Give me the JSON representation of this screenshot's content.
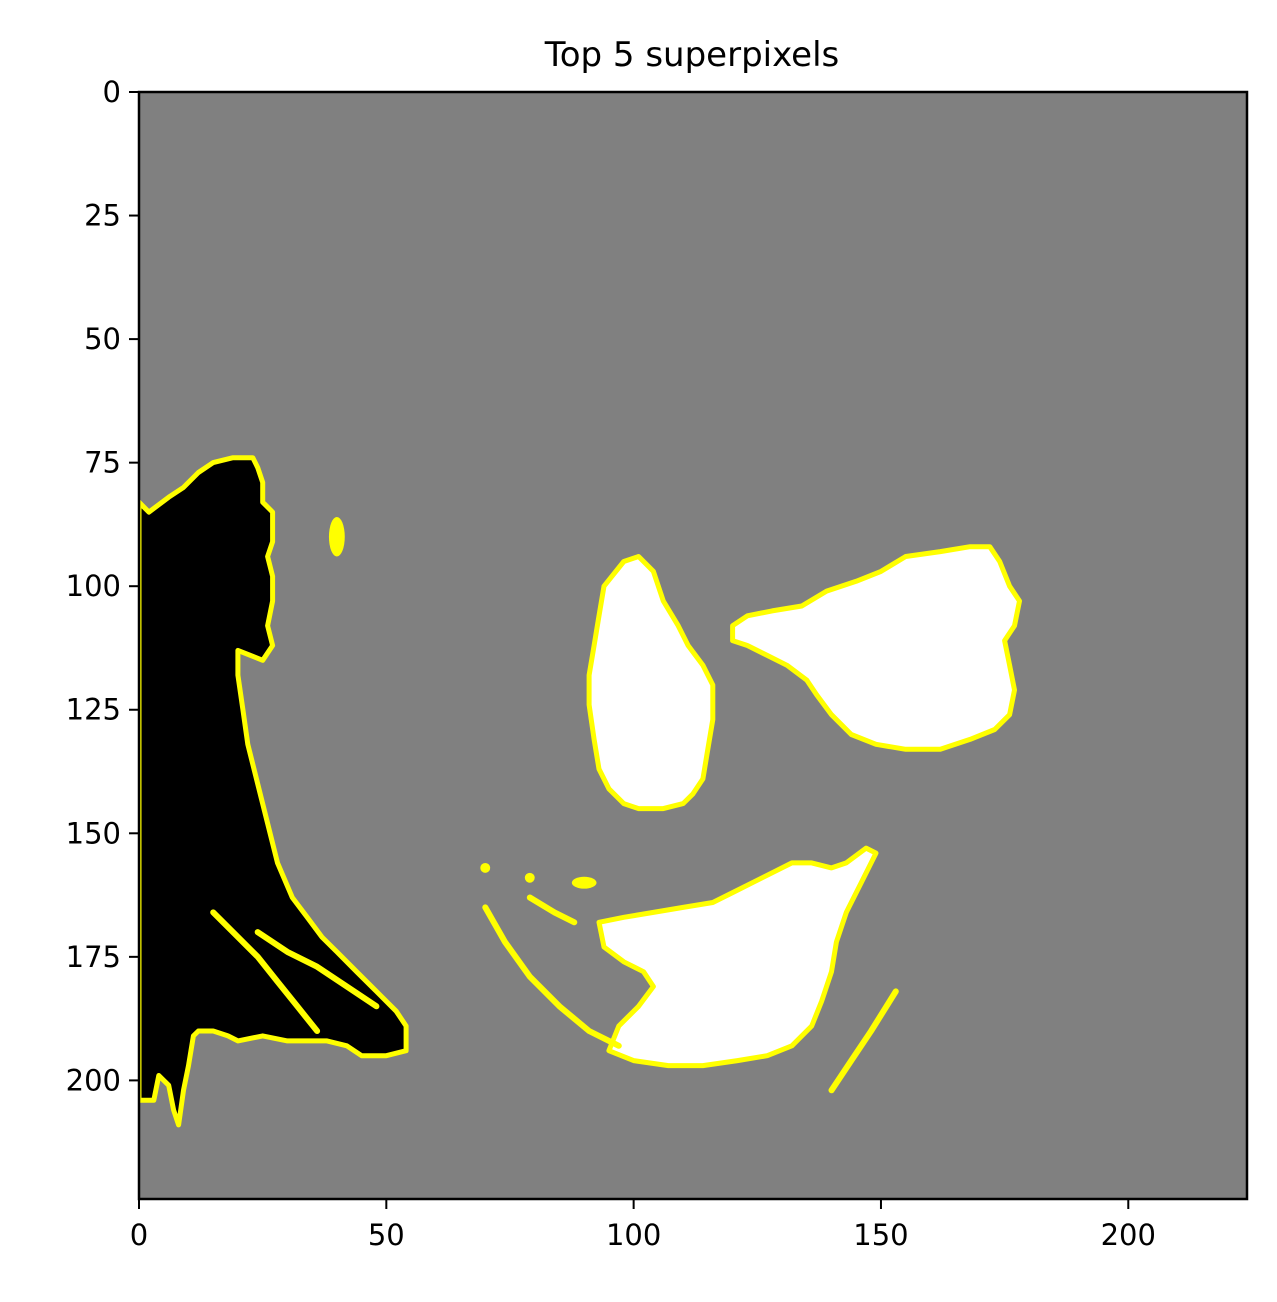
{
  "chart_data": {
    "type": "image",
    "title": "Top 5 superpixels",
    "xlabel": "",
    "ylabel": "",
    "xlim": [
      0,
      224
    ],
    "ylim": [
      224,
      0
    ],
    "xticks": [
      0,
      50,
      100,
      150,
      200
    ],
    "yticks": [
      0,
      25,
      50,
      75,
      100,
      125,
      150,
      175,
      200
    ],
    "grid": false,
    "background_color": "#808080",
    "boundary_color": "#ffff00",
    "regions": [
      {
        "name": "left-black-region",
        "fill": "#000000",
        "outline": [
          [
            0,
            83
          ],
          [
            2,
            85
          ],
          [
            6,
            82
          ],
          [
            9,
            80
          ],
          [
            12,
            77
          ],
          [
            15,
            75
          ],
          [
            19,
            74
          ],
          [
            23,
            74
          ],
          [
            24,
            76
          ],
          [
            25,
            79
          ],
          [
            25,
            83
          ],
          [
            27,
            85
          ],
          [
            27,
            91
          ],
          [
            26,
            94
          ],
          [
            27,
            98
          ],
          [
            27,
            103
          ],
          [
            26,
            108
          ],
          [
            27,
            112
          ],
          [
            25,
            115
          ],
          [
            20,
            113
          ],
          [
            20,
            118
          ],
          [
            21,
            125
          ],
          [
            22,
            132
          ],
          [
            24,
            140
          ],
          [
            26,
            148
          ],
          [
            28,
            156
          ],
          [
            31,
            163
          ],
          [
            34,
            167
          ],
          [
            37,
            171
          ],
          [
            40,
            174
          ],
          [
            44,
            178
          ],
          [
            48,
            182
          ],
          [
            52,
            186
          ],
          [
            54,
            189
          ],
          [
            54,
            194
          ],
          [
            50,
            195
          ],
          [
            45,
            195
          ],
          [
            42,
            193
          ],
          [
            38,
            192
          ],
          [
            34,
            192
          ],
          [
            30,
            192
          ],
          [
            25,
            191
          ],
          [
            20,
            192
          ],
          [
            18,
            191
          ],
          [
            15,
            190
          ],
          [
            12,
            190
          ],
          [
            11,
            191
          ],
          [
            10,
            197
          ],
          [
            9,
            202
          ],
          [
            8,
            209
          ],
          [
            7,
            206
          ],
          [
            6,
            201
          ],
          [
            4,
            199
          ],
          [
            3,
            204
          ],
          [
            0,
            204
          ]
        ]
      },
      {
        "name": "left-eye-white-region",
        "fill": "#ffffff",
        "outline": [
          [
            98,
            95
          ],
          [
            101,
            94
          ],
          [
            104,
            97
          ],
          [
            106,
            103
          ],
          [
            109,
            108
          ],
          [
            111,
            112
          ],
          [
            114,
            116
          ],
          [
            116,
            120
          ],
          [
            116,
            127
          ],
          [
            115,
            133
          ],
          [
            114,
            139
          ],
          [
            112,
            142
          ],
          [
            110,
            144
          ],
          [
            106,
            145
          ],
          [
            101,
            145
          ],
          [
            98,
            144
          ],
          [
            95,
            141
          ],
          [
            93,
            137
          ],
          [
            92,
            131
          ],
          [
            91,
            124
          ],
          [
            91,
            118
          ],
          [
            92,
            112
          ],
          [
            93,
            106
          ],
          [
            94,
            100
          ]
        ]
      },
      {
        "name": "right-eye-white-region",
        "fill": "#ffffff",
        "outline": [
          [
            120,
            108
          ],
          [
            123,
            106
          ],
          [
            128,
            105
          ],
          [
            134,
            104
          ],
          [
            139,
            101
          ],
          [
            145,
            99
          ],
          [
            150,
            97
          ],
          [
            155,
            94
          ],
          [
            162,
            93
          ],
          [
            168,
            92
          ],
          [
            172,
            92
          ],
          [
            174,
            95
          ],
          [
            176,
            100
          ],
          [
            178,
            103
          ],
          [
            177,
            108
          ],
          [
            175,
            111
          ],
          [
            176,
            116
          ],
          [
            177,
            121
          ],
          [
            176,
            126
          ],
          [
            173,
            129
          ],
          [
            168,
            131
          ],
          [
            162,
            133
          ],
          [
            155,
            133
          ],
          [
            149,
            132
          ],
          [
            144,
            130
          ],
          [
            140,
            126
          ],
          [
            137,
            122
          ],
          [
            135,
            119
          ],
          [
            131,
            116
          ],
          [
            127,
            114
          ],
          [
            123,
            112
          ],
          [
            120,
            111
          ]
        ]
      },
      {
        "name": "mouth-white-region",
        "fill": "#ffffff",
        "outline": [
          [
            93,
            168
          ],
          [
            98,
            167
          ],
          [
            104,
            166
          ],
          [
            110,
            165
          ],
          [
            116,
            164
          ],
          [
            120,
            162
          ],
          [
            124,
            160
          ],
          [
            128,
            158
          ],
          [
            132,
            156
          ],
          [
            136,
            156
          ],
          [
            140,
            157
          ],
          [
            143,
            156
          ],
          [
            147,
            153
          ],
          [
            149,
            154
          ],
          [
            146,
            160
          ],
          [
            143,
            166
          ],
          [
            141,
            172
          ],
          [
            140,
            178
          ],
          [
            138,
            184
          ],
          [
            136,
            189
          ],
          [
            132,
            193
          ],
          [
            127,
            195
          ],
          [
            121,
            196
          ],
          [
            114,
            197
          ],
          [
            107,
            197
          ],
          [
            100,
            196
          ],
          [
            95,
            194
          ],
          [
            97,
            189
          ],
          [
            101,
            185
          ],
          [
            104,
            181
          ],
          [
            102,
            178
          ],
          [
            98,
            176
          ],
          [
            94,
            173
          ]
        ]
      }
    ],
    "strokes": [
      {
        "name": "left-lower-streak",
        "points": [
          [
            15,
            166
          ],
          [
            19,
            170
          ],
          [
            24,
            175
          ],
          [
            28,
            180
          ],
          [
            32,
            185
          ],
          [
            36,
            190
          ]
        ]
      },
      {
        "name": "left-inner-streak",
        "points": [
          [
            24,
            170
          ],
          [
            30,
            174
          ],
          [
            36,
            177
          ],
          [
            42,
            181
          ],
          [
            48,
            185
          ]
        ]
      },
      {
        "name": "mouth-left-arc",
        "points": [
          [
            70,
            165
          ],
          [
            74,
            172
          ],
          [
            79,
            179
          ],
          [
            85,
            185
          ],
          [
            91,
            190
          ],
          [
            97,
            193
          ]
        ]
      },
      {
        "name": "mouth-upper-fragment",
        "points": [
          [
            79,
            163
          ],
          [
            84,
            166
          ],
          [
            88,
            168
          ]
        ]
      },
      {
        "name": "right-cheek-streak",
        "points": [
          [
            140,
            202
          ],
          [
            144,
            196
          ],
          [
            148,
            190
          ],
          [
            153,
            182
          ]
        ]
      }
    ],
    "specks": [
      {
        "name": "small-left-speck",
        "cx": 40,
        "cy": 90,
        "rx": 1.6,
        "ry": 4
      },
      {
        "name": "mouth-speck-1",
        "cx": 70,
        "cy": 157,
        "rx": 1,
        "ry": 1
      },
      {
        "name": "mouth-speck-2",
        "cx": 79,
        "cy": 159,
        "rx": 1,
        "ry": 1
      },
      {
        "name": "mouth-speck-3",
        "cx": 90,
        "cy": 160,
        "rx": 2.5,
        "ry": 1.2
      }
    ]
  }
}
